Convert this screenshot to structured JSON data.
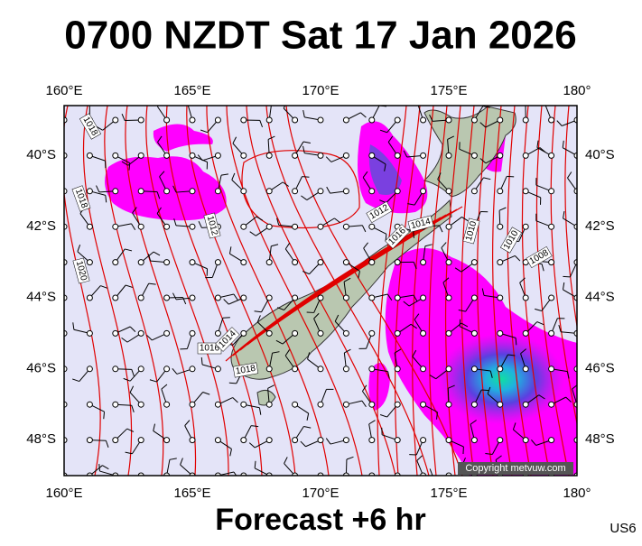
{
  "header": {
    "title": "0700 NZDT Sat 17 Jan 2026"
  },
  "map": {
    "longitude_labels": [
      "160°E",
      "165°E",
      "170°E",
      "175°E",
      "180°"
    ],
    "latitude_labels": [
      "40°S",
      "42°S",
      "44°S",
      "46°S",
      "48°S"
    ],
    "isobar_labels": [
      "1018",
      "1018",
      "1020",
      "1012",
      "1012",
      "1016",
      "1014",
      "1010",
      "1010",
      "1008",
      "1016",
      "1014",
      "1018"
    ],
    "copyright": "Copyright metvuw.com"
  },
  "footer": {
    "forecast": "Forecast +6 hr",
    "code": "US6"
  }
}
